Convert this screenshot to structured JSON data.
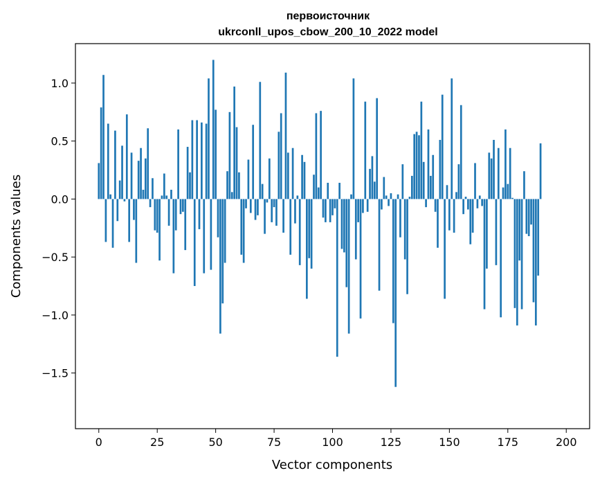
{
  "chart_data": {
    "type": "bar",
    "title_line1": "первоисточник",
    "title_line2": "ukrconll_upos_cbow_200_10_2022 model",
    "xlabel": "Vector components",
    "ylabel": "Components values",
    "xlim": [
      -10,
      210
    ],
    "ylim": [
      -1.98,
      1.34
    ],
    "x_ticks": [
      0,
      25,
      50,
      75,
      100,
      125,
      150,
      175,
      200
    ],
    "x_tick_labels": [
      "0",
      "25",
      "50",
      "75",
      "100",
      "125",
      "150",
      "175",
      "200"
    ],
    "y_ticks": [
      1.0,
      0.5,
      0.0,
      -0.5,
      -1.0,
      -1.5
    ],
    "y_tick_labels": [
      "1.0",
      "0.5",
      "0.0",
      "−0.5",
      "−1.0",
      "−1.5"
    ],
    "bar_color": "#1f77b4",
    "values": [
      0.31,
      0.79,
      1.07,
      -0.37,
      0.65,
      0.04,
      -0.42,
      0.59,
      -0.19,
      0.16,
      0.46,
      -0.02,
      0.73,
      -0.37,
      0.4,
      -0.18,
      -0.55,
      0.33,
      0.44,
      0.08,
      0.35,
      0.61,
      -0.07,
      0.18,
      -0.27,
      -0.29,
      -0.53,
      0.03,
      0.22,
      0.03,
      -0.23,
      0.08,
      -0.64,
      -0.27,
      0.6,
      -0.13,
      -0.11,
      -0.44,
      0.45,
      0.23,
      0.68,
      -0.75,
      0.68,
      -0.26,
      0.66,
      -0.64,
      0.65,
      1.04,
      -0.61,
      1.2,
      0.77,
      -0.33,
      -1.16,
      -0.9,
      -0.55,
      0.24,
      0.75,
      0.06,
      0.97,
      0.62,
      0.23,
      -0.48,
      -0.55,
      -0.08,
      0.34,
      -0.12,
      0.64,
      -0.18,
      -0.14,
      1.01,
      0.13,
      -0.3,
      -0.03,
      0.35,
      -0.2,
      -0.07,
      -0.23,
      0.58,
      0.74,
      -0.29,
      1.09,
      0.4,
      -0.48,
      0.44,
      -0.21,
      0.03,
      -0.57,
      0.38,
      0.32,
      -0.86,
      -0.51,
      -0.6,
      0.21,
      0.74,
      0.1,
      0.76,
      -0.16,
      -0.2,
      0.14,
      -0.2,
      -0.14,
      -0.08,
      -1.36,
      0.14,
      -0.43,
      -0.46,
      -0.76,
      -1.16,
      0.04,
      1.04,
      -0.52,
      -0.2,
      -1.03,
      -0.12,
      0.84,
      -0.11,
      0.26,
      0.37,
      0.15,
      0.87,
      -0.79,
      -0.09,
      0.19,
      0.03,
      -0.06,
      0.05,
      -1.07,
      -1.62,
      0.04,
      -0.33,
      0.3,
      -0.52,
      -0.82,
      0.02,
      0.2,
      0.56,
      0.58,
      0.55,
      0.84,
      0.32,
      -0.07,
      0.6,
      0.2,
      0.38,
      -0.11,
      -0.42,
      0.51,
      0.9,
      -0.86,
      0.12,
      -0.27,
      1.04,
      -0.29,
      0.06,
      0.3,
      0.81,
      -0.13,
      0.02,
      -0.09,
      -0.39,
      -0.29,
      0.31,
      -0.08,
      0.03,
      -0.06,
      -0.95,
      -0.6,
      0.4,
      0.35,
      0.51,
      -0.57,
      0.44,
      -1.02,
      0.1,
      0.6,
      0.13,
      0.44,
      0.01,
      -0.94,
      -1.09,
      -0.53,
      -0.95,
      0.24,
      -0.3,
      -0.32,
      -0.22,
      -0.89,
      -1.09,
      -0.66,
      0.48
    ]
  }
}
